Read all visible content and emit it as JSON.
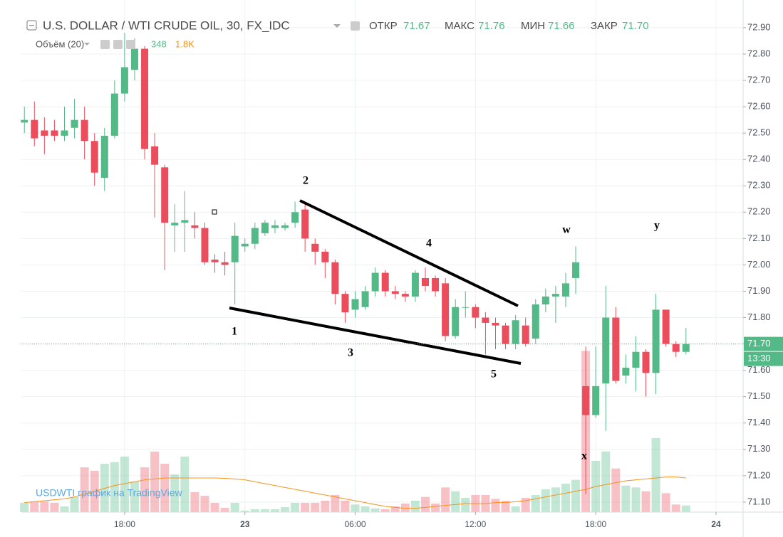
{
  "chart_data": {
    "type": "candlestick",
    "title": "U.S. DOLLAR / WTI CRUDE OIL, 30, FX_IDC",
    "header": {
      "open_label": "ОТКР",
      "open": "71.67",
      "high_label": "МАКС",
      "high": "71.76",
      "low_label": "МИН",
      "low": "71.66",
      "close_label": "ЗАКР",
      "close": "71.70"
    },
    "volume_header": {
      "label": "Объём (20)",
      "volume": "348",
      "volume_ma": "1.8K"
    },
    "watermark": "USDWTI график на TradingView",
    "up_color": "#53b987",
    "down_color": "#eb4d5c",
    "ma_color": "#f7931a",
    "open": [
      72.54,
      72.55,
      72.51,
      72.51,
      72.49,
      72.52,
      72.55,
      72.47,
      72.33,
      72.49,
      72.65,
      72.74,
      72.82,
      72.45,
      72.37,
      72.15,
      72.16,
      72.15,
      72.14,
      72.02,
      72.01,
      72.01,
      72.07,
      72.08,
      72.12,
      72.14,
      72.14,
      72.16,
      72.21,
      72.08,
      72.05,
      72.01,
      71.89,
      71.83,
      71.84,
      71.9,
      71.97,
      71.9,
      71.89,
      71.88,
      71.95,
      71.95,
      71.93,
      71.73,
      71.84,
      71.84,
      71.8,
      71.78,
      71.77,
      71.7,
      71.77,
      71.72,
      71.85,
      71.88,
      71.88,
      71.95,
      71.54,
      71.43,
      71.55,
      71.8,
      71.58,
      71.61,
      71.67,
      71.59,
      71.83,
      71.7,
      71.67
    ],
    "high": [
      72.6,
      72.62,
      72.56,
      72.55,
      72.6,
      72.63,
      72.6,
      72.5,
      72.52,
      72.7,
      72.88,
      72.86,
      72.83,
      72.5,
      72.38,
      72.23,
      72.28,
      72.2,
      72.16,
      72.04,
      72.05,
      72.16,
      72.1,
      72.16,
      72.17,
      72.17,
      72.16,
      72.24,
      72.23,
      72.1,
      72.06,
      72.02,
      71.9,
      71.9,
      71.92,
      71.99,
      71.98,
      71.92,
      71.9,
      71.98,
      71.99,
      71.96,
      71.95,
      71.87,
      71.9,
      71.85,
      71.82,
      71.8,
      71.78,
      71.81,
      71.8,
      71.87,
      71.91,
      71.92,
      71.97,
      72.07,
      71.69,
      71.69,
      71.92,
      71.84,
      71.66,
      71.73,
      71.68,
      71.89,
      71.83,
      71.71,
      71.76
    ],
    "low": [
      72.5,
      72.45,
      72.42,
      72.47,
      72.47,
      72.48,
      72.4,
      72.3,
      72.28,
      72.48,
      72.62,
      72.7,
      72.4,
      72.18,
      71.98,
      72.05,
      72.05,
      72.1,
      72.0,
      71.97,
      71.96,
      71.85,
      72.05,
      72.06,
      72.11,
      72.12,
      72.13,
      72.14,
      72.05,
      72.0,
      71.95,
      71.85,
      71.78,
      71.8,
      71.83,
      71.88,
      71.88,
      71.87,
      71.86,
      71.86,
      71.9,
      71.88,
      71.71,
      71.72,
      71.8,
      71.76,
      71.66,
      71.68,
      71.68,
      71.68,
      71.69,
      71.7,
      71.82,
      71.78,
      71.84,
      71.89,
      71.13,
      71.42,
      71.37,
      71.55,
      71.55,
      71.52,
      71.5,
      71.51,
      71.69,
      71.65,
      71.66
    ],
    "close": [
      72.55,
      72.48,
      72.49,
      72.49,
      72.51,
      72.55,
      72.47,
      72.35,
      72.49,
      72.65,
      72.75,
      72.82,
      72.44,
      72.38,
      72.16,
      72.16,
      72.17,
      72.14,
      72.01,
      72.01,
      72.0,
      72.11,
      72.08,
      72.14,
      72.16,
      72.15,
      72.15,
      72.2,
      72.1,
      72.05,
      72.01,
      71.89,
      71.82,
      71.87,
      71.9,
      71.97,
      71.9,
      71.89,
      71.88,
      71.97,
      71.92,
      71.9,
      71.73,
      71.84,
      71.84,
      71.8,
      71.78,
      71.77,
      71.7,
      71.79,
      71.7,
      71.85,
      71.88,
      71.89,
      71.93,
      72.01,
      71.43,
      71.54,
      71.8,
      71.56,
      71.61,
      71.67,
      71.59,
      71.83,
      71.7,
      71.67,
      71.7
    ],
    "volume": [
      490,
      560,
      560,
      490,
      300,
      790,
      2360,
      2180,
      2550,
      2630,
      2930,
      1610,
      2360,
      3190,
      2550,
      1990,
      2930,
      1050,
      860,
      490,
      225,
      490,
      75,
      150,
      150,
      150,
      260,
      490,
      490,
      490,
      600,
      900,
      600,
      400,
      300,
      200,
      150,
      300,
      450,
      600,
      800,
      450,
      1300,
      1100,
      750,
      900,
      900,
      700,
      600,
      300,
      750,
      900,
      1200,
      1300,
      1500,
      1700,
      8500,
      2700,
      3200,
      2300,
      1400,
      1300,
      1100,
      3900,
      1000,
      400,
      348
    ],
    "volume_ma": [
      500,
      550,
      600,
      650,
      700,
      800,
      950,
      1100,
      1250,
      1400,
      1500,
      1600,
      1700,
      1750,
      1800,
      1800,
      1800,
      1800,
      1800,
      1800,
      1780,
      1750,
      1700,
      1600,
      1500,
      1400,
      1300,
      1200,
      1100,
      1000,
      900,
      800,
      700,
      600,
      500,
      400,
      300,
      250,
      200,
      200,
      250,
      300,
      350,
      400,
      450,
      450,
      450,
      500,
      500,
      550,
      600,
      700,
      800,
      900,
      1000,
      1100,
      1200,
      1350,
      1450,
      1550,
      1650,
      1700,
      1750,
      1800,
      1850,
      1850,
      1800
    ],
    "volume_ylim": [
      0,
      27000
    ],
    "xlim": [
      -0.3,
      71.7
    ],
    "xticks": [
      {
        "value": 10,
        "label": "18:00"
      },
      {
        "value": 22,
        "label": "23"
      },
      {
        "value": 33,
        "label": "06:00"
      },
      {
        "value": 45,
        "label": "12:00"
      },
      {
        "value": 57,
        "label": "18:00"
      },
      {
        "value": 69,
        "label": "24"
      }
    ],
    "ylim": [
      71.062,
      73.005
    ],
    "yticks": [
      {
        "value": 72.9,
        "label": "72.90"
      },
      {
        "value": 72.8,
        "label": "72.80"
      },
      {
        "value": 72.7,
        "label": "72.70"
      },
      {
        "value": 72.6,
        "label": "72.60"
      },
      {
        "value": 72.5,
        "label": "72.50"
      },
      {
        "value": 72.4,
        "label": "72.40"
      },
      {
        "value": 72.3,
        "label": "72.30"
      },
      {
        "value": 72.2,
        "label": "72.20"
      },
      {
        "value": 72.1,
        "label": "72.10"
      },
      {
        "value": 72.0,
        "label": "72.00"
      },
      {
        "value": 71.9,
        "label": "71.90"
      },
      {
        "value": 71.8,
        "label": "71.80"
      },
      {
        "value": 71.7,
        "label": "71.70"
      },
      {
        "value": 71.6,
        "label": "71.60"
      },
      {
        "value": 71.5,
        "label": "71.50"
      },
      {
        "value": 71.4,
        "label": "71.40"
      },
      {
        "value": 71.3,
        "label": "71.30"
      },
      {
        "value": 71.2,
        "label": "71.20"
      },
      {
        "value": 71.1,
        "label": "71.10"
      }
    ],
    "last_price": {
      "value": 71.7,
      "label": "71.70"
    },
    "countdown": "13:30",
    "grid": true,
    "annotations": [
      "1",
      "2",
      "3",
      "4",
      "5",
      "w",
      "x",
      "y"
    ]
  }
}
